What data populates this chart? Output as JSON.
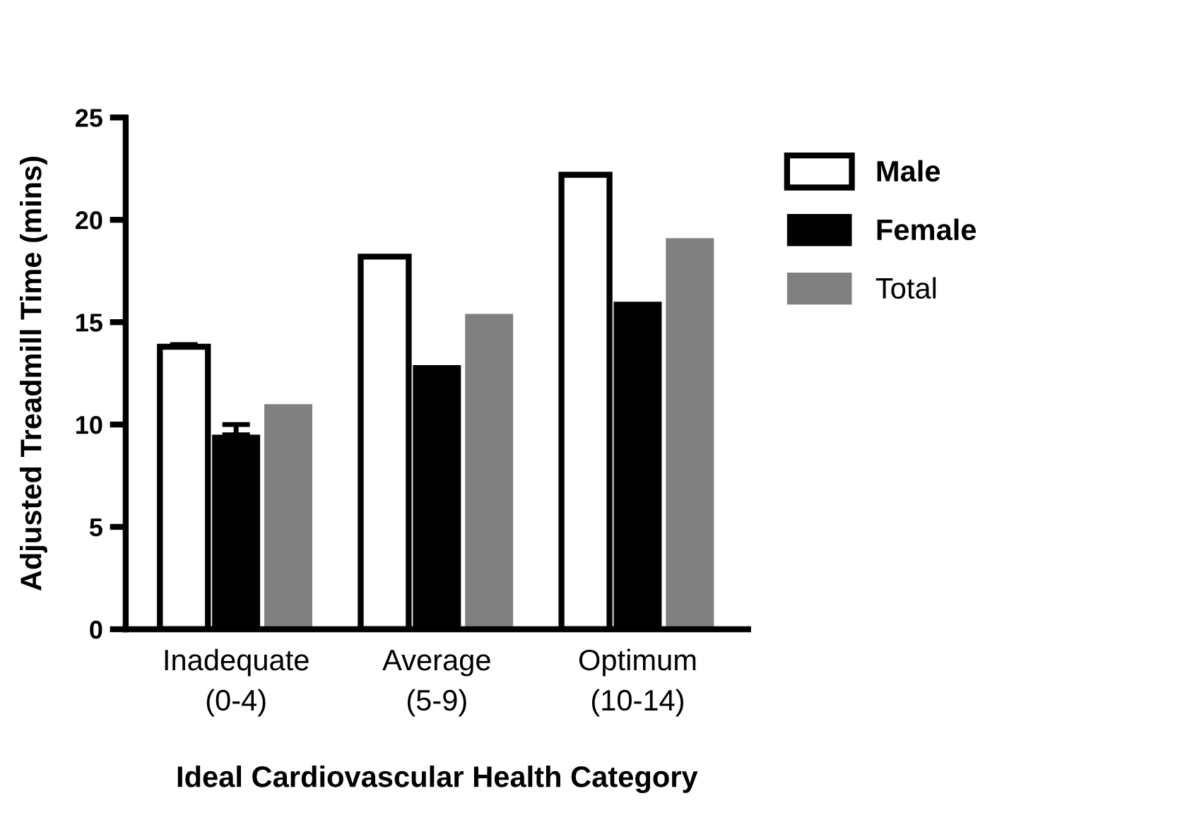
{
  "chart_data": {
    "type": "bar",
    "xlabel": "Ideal Cardiovascular Health Category",
    "ylabel": "Adjusted Treadmill Time (mins)",
    "categories": [
      "Inadequate\n(0-4)",
      "Average\n(5-9)",
      "Optimum\n(10-14)"
    ],
    "series": [
      {
        "name": "Male",
        "color": "#ffffff",
        "values": [
          13.8,
          18.2,
          22.2
        ],
        "errors": [
          0.1,
          null,
          null
        ]
      },
      {
        "name": "Female",
        "color": "#000000",
        "values": [
          9.5,
          12.9,
          16.0
        ],
        "errors": [
          0.5,
          null,
          null
        ]
      },
      {
        "name": "Total",
        "color": "#808080",
        "values": [
          11.0,
          15.4,
          19.1
        ]
      }
    ],
    "ylim": [
      0,
      25
    ],
    "yticks": [
      0,
      5,
      10,
      15,
      20,
      25
    ],
    "grid": false,
    "legend": "right"
  }
}
